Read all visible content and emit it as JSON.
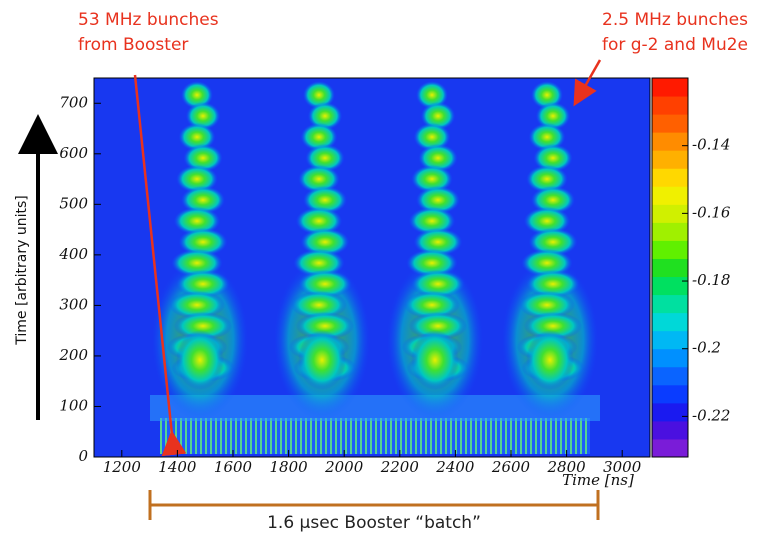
{
  "chart_data": {
    "type": "heatmap",
    "x_label": "Time [ns]",
    "y_label": "Time [arbitrary units]",
    "xlim": [
      1100,
      3100
    ],
    "xticks": [
      1200,
      1400,
      1600,
      1800,
      2000,
      2200,
      2400,
      2600,
      2800,
      3000
    ],
    "ylim": [
      0,
      750
    ],
    "yticks": [
      0,
      100,
      200,
      300,
      400,
      500,
      600,
      700
    ],
    "colorbar": {
      "clim": [
        -0.232,
        -0.12
      ],
      "ticks": [
        -0.14,
        -0.16,
        -0.18,
        -0.2,
        -0.22
      ],
      "colors": [
        "#7a1cd8",
        "#4a10e0",
        "#1a1af0",
        "#0a3cff",
        "#0a64ff",
        "#0090ff",
        "#00b8f4",
        "#00d8d8",
        "#00e0a0",
        "#00e060",
        "#20e020",
        "#60f000",
        "#a0f000",
        "#d0f000",
        "#f0f000",
        "#ffd800",
        "#ffb000",
        "#ff8c00",
        "#ff6000",
        "#ff4000",
        "#ff1a00"
      ]
    },
    "annotations": [
      {
        "lines": [
          "53 MHz bunches",
          "from Booster"
        ],
        "color": "#e8321e"
      },
      {
        "lines": [
          "2.5 MHz bunches",
          "for g-2 and Mu2e"
        ],
        "color": "#e8321e"
      },
      {
        "lines": [
          "1.6 μsec Booster “batch”"
        ],
        "color": "#222222"
      }
    ]
  }
}
